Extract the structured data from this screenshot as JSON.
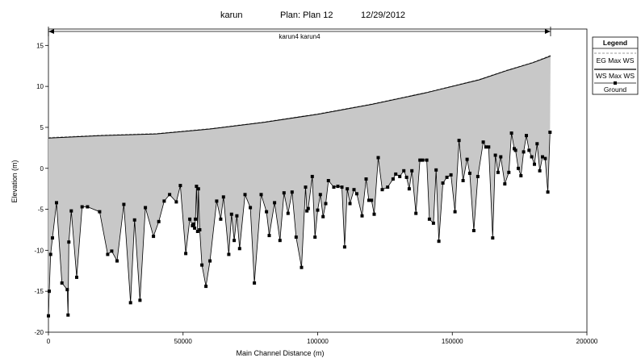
{
  "chart_data": {
    "type": "area",
    "title": {
      "project": "karun",
      "plan": "Plan: Plan 12",
      "date": "12/29/2012"
    },
    "reach_label": "karun4 karun4",
    "xlabel": "Main Channel Distance (m)",
    "ylabel": "Elevation (m)",
    "xlim": [
      0,
      200000
    ],
    "ylim": [
      -20,
      17
    ],
    "x_ticks": [
      0,
      50000,
      100000,
      150000,
      200000
    ],
    "y_ticks": [
      -20,
      -15,
      -10,
      -5,
      0,
      5,
      10,
      15
    ],
    "reach_extent": [
      0,
      186500
    ],
    "grid": false,
    "legend": {
      "title": "Legend",
      "position": "top-right",
      "entries": [
        "EG Max WS",
        "WS Max WS",
        "Ground"
      ]
    },
    "colors": {
      "water_fill": "#c8c8c8",
      "ground": "#000000",
      "ws_line": "#000000",
      "eg_line": "#999999"
    },
    "series": [
      {
        "name": "WS Max WS",
        "x": [
          0,
          20000,
          40000,
          60000,
          80000,
          100000,
          120000,
          140000,
          160000,
          170000,
          180000,
          186500
        ],
        "values": [
          3.7,
          4.0,
          4.2,
          4.8,
          5.6,
          6.6,
          7.8,
          9.2,
          10.8,
          11.9,
          12.9,
          13.7
        ]
      },
      {
        "name": "EG Max WS",
        "x": [
          0,
          20000,
          40000,
          60000,
          80000,
          100000,
          120000,
          140000,
          160000,
          170000,
          180000,
          186500
        ],
        "values": [
          3.75,
          4.05,
          4.25,
          4.85,
          5.65,
          6.65,
          7.85,
          9.25,
          10.85,
          11.95,
          12.95,
          13.8
        ]
      },
      {
        "name": "Ground",
        "x": [
          0,
          300,
          800,
          1500,
          3000,
          5000,
          7000,
          7300,
          7600,
          8500,
          10500,
          12500,
          14500,
          19000,
          22000,
          23500,
          25500,
          28000,
          30500,
          32000,
          34000,
          36000,
          39000,
          41000,
          43000,
          45000,
          47500,
          49000,
          51000,
          52500,
          53500,
          54000,
          54300,
          54600,
          55000,
          55400,
          55700,
          56200,
          57000,
          58500,
          60000,
          62500,
          64000,
          65000,
          67000,
          68000,
          69000,
          70000,
          71000,
          73000,
          75000,
          76500,
          79000,
          81000,
          82000,
          84000,
          86000,
          87500,
          89000,
          90500,
          92000,
          94000,
          95500,
          96000,
          96500,
          98000,
          99000,
          100000,
          101000,
          102000,
          103000,
          104000,
          106000,
          107500,
          109000,
          110000,
          111000,
          112000,
          113500,
          114500,
          116500,
          118000,
          119000,
          120000,
          121000,
          122500,
          124000,
          126000,
          128000,
          129000,
          130500,
          132000,
          133000,
          134000,
          135000,
          136500,
          138000,
          139000,
          140500,
          141500,
          143000,
          144000,
          145000,
          146500,
          148000,
          149500,
          151000,
          152500,
          154000,
          155500,
          156500,
          158000,
          159500,
          161500,
          162500,
          163500,
          165000,
          166000,
          167000,
          168000,
          169500,
          171000,
          172000,
          173000,
          173500,
          174500,
          175500,
          176500,
          177500,
          178500,
          179500,
          180500,
          181500,
          182500,
          183500,
          184500,
          185500,
          186300
        ],
        "values": [
          -18.0,
          -15.0,
          -10.5,
          -8.5,
          -4.2,
          -14.0,
          -14.8,
          -17.9,
          -9.0,
          -5.2,
          -13.3,
          -4.7,
          -4.7,
          -5.3,
          -10.5,
          -10.1,
          -11.3,
          -4.4,
          -16.4,
          -6.3,
          -16.1,
          -4.8,
          -8.3,
          -6.5,
          -4.0,
          -3.2,
          -4.1,
          -2.1,
          -10.4,
          -6.2,
          -7.0,
          -6.8,
          -7.3,
          -6.2,
          -2.2,
          -7.7,
          -2.5,
          -7.5,
          -11.8,
          -14.4,
          -11.3,
          -4.0,
          -6.2,
          -3.5,
          -10.5,
          -5.6,
          -8.8,
          -5.8,
          -9.8,
          -3.2,
          -4.8,
          -14.0,
          -3.2,
          -5.3,
          -8.2,
          -4.2,
          -8.8,
          -3.0,
          -5.5,
          -2.9,
          -8.4,
          -12.1,
          -2.3,
          -5.2,
          -4.9,
          -1.0,
          -8.4,
          -5.1,
          -3.2,
          -5.9,
          -4.3,
          -1.5,
          -2.3,
          -2.2,
          -2.3,
          -9.6,
          -2.5,
          -4.3,
          -2.6,
          -3.1,
          -5.8,
          -1.3,
          -3.9,
          -3.9,
          -5.6,
          1.3,
          -2.6,
          -2.3,
          -1.3,
          -0.7,
          -1.0,
          -0.3,
          -1.1,
          -2.5,
          -0.3,
          -5.5,
          1.0,
          1.0,
          1.0,
          -6.2,
          -6.7,
          -0.2,
          -8.9,
          -1.8,
          -1.1,
          -0.8,
          -5.3,
          3.4,
          -1.5,
          1.1,
          -0.6,
          -7.6,
          -1.0,
          3.2,
          2.6,
          2.6,
          -8.5,
          1.6,
          -0.5,
          1.4,
          -1.9,
          -0.5,
          4.3,
          2.4,
          2.2,
          0.0,
          -0.9,
          2.0,
          4.0,
          2.2,
          1.4,
          0.5,
          3.0,
          -0.3,
          1.4,
          1.2,
          -2.9,
          4.4
        ]
      }
    ]
  }
}
